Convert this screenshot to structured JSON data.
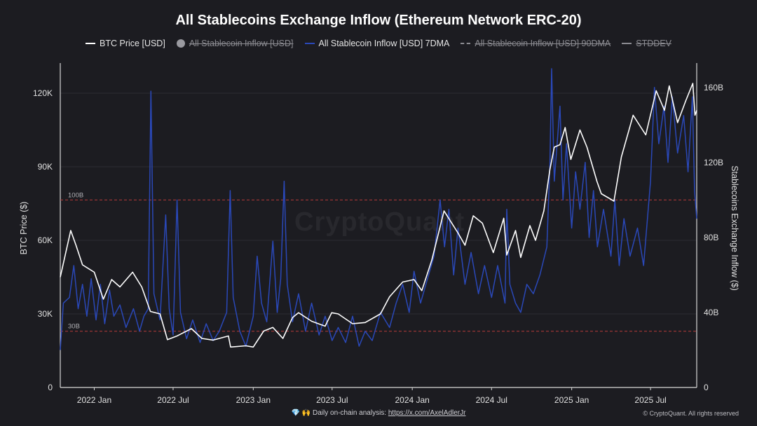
{
  "chart_data": {
    "type": "line",
    "title": "All Stablecoins Exchange Inflow (Ethereum Network ERC-20)",
    "left_axis_label": "BTC Price ($)",
    "right_axis_label": "Stablecoins Exchange Inflow ($)",
    "left_ylim": [
      0,
      130000
    ],
    "right_ylim": [
      0,
      170
    ],
    "left_ticks": [
      {
        "v": 0,
        "label": "0"
      },
      {
        "v": 30000,
        "label": "30K"
      },
      {
        "v": 60000,
        "label": "60K"
      },
      {
        "v": 90000,
        "label": "90K"
      },
      {
        "v": 120000,
        "label": "120K"
      }
    ],
    "right_ticks": [
      {
        "v": 0,
        "label": "0"
      },
      {
        "v": 40,
        "label": "40B"
      },
      {
        "v": 80,
        "label": "80B"
      },
      {
        "v": 120,
        "label": "120B"
      },
      {
        "v": 160,
        "label": "160B"
      }
    ],
    "x_range": [
      "2021-10-15",
      "2025-10-15"
    ],
    "x_ticks": [
      {
        "date": "2022-01-01",
        "label": "2022 Jan"
      },
      {
        "date": "2022-07-01",
        "label": "2022 Jul"
      },
      {
        "date": "2023-01-01",
        "label": "2023 Jan"
      },
      {
        "date": "2023-07-01",
        "label": "2023 Jul"
      },
      {
        "date": "2024-01-01",
        "label": "2024 Jan"
      },
      {
        "date": "2024-07-01",
        "label": "2024 Jul"
      },
      {
        "date": "2025-01-01",
        "label": "2025 Jan"
      },
      {
        "date": "2025-07-01",
        "label": "2025 Jul"
      }
    ],
    "reference_lines": [
      {
        "value": 100,
        "axis": "right",
        "label": "100B",
        "color": "#b83a3a"
      },
      {
        "value": 30,
        "axis": "right",
        "label": "30B",
        "color": "#b83a3a"
      }
    ],
    "legend": [
      {
        "name": "BTC Price [USD]",
        "color": "#ffffff",
        "style": "line",
        "visible": true
      },
      {
        "name": "All Stablecoin Inflow [USD]",
        "color": "#9a9aa0",
        "style": "dot",
        "visible": false
      },
      {
        "name": "All Stablecoin Inflow [USD] 7DMA",
        "color": "#2a48b8",
        "style": "line",
        "visible": true
      },
      {
        "name": "All Stablecoin Inflow [USD] 90DMA",
        "color": "#8c8c92",
        "style": "dashed",
        "visible": false
      },
      {
        "name": "STDDEV",
        "color": "#8c8c92",
        "style": "line",
        "visible": false
      }
    ],
    "series": [
      {
        "name": "BTC Price [USD]",
        "axis": "left",
        "color": "#ffffff",
        "points": [
          [
            "2021-10-15",
            45000
          ],
          [
            "2021-11-08",
            64000
          ],
          [
            "2021-11-20",
            58000
          ],
          [
            "2021-12-05",
            50000
          ],
          [
            "2022-01-01",
            47000
          ],
          [
            "2022-01-22",
            36000
          ],
          [
            "2022-02-10",
            44000
          ],
          [
            "2022-03-01",
            41000
          ],
          [
            "2022-03-30",
            47000
          ],
          [
            "2022-04-20",
            41000
          ],
          [
            "2022-05-10",
            31000
          ],
          [
            "2022-06-01",
            30000
          ],
          [
            "2022-06-18",
            19500
          ],
          [
            "2022-07-10",
            21000
          ],
          [
            "2022-08-12",
            24000
          ],
          [
            "2022-09-05",
            20000
          ],
          [
            "2022-10-01",
            19300
          ],
          [
            "2022-11-05",
            21000
          ],
          [
            "2022-11-10",
            16500
          ],
          [
            "2022-12-15",
            17000
          ],
          [
            "2023-01-01",
            16500
          ],
          [
            "2023-01-25",
            23000
          ],
          [
            "2023-02-15",
            24500
          ],
          [
            "2023-03-10",
            20000
          ],
          [
            "2023-04-01",
            28500
          ],
          [
            "2023-04-15",
            30500
          ],
          [
            "2023-05-15",
            27000
          ],
          [
            "2023-06-15",
            25000
          ],
          [
            "2023-06-30",
            30500
          ],
          [
            "2023-07-15",
            30000
          ],
          [
            "2023-08-17",
            26000
          ],
          [
            "2023-09-15",
            26500
          ],
          [
            "2023-10-20",
            30000
          ],
          [
            "2023-11-10",
            37000
          ],
          [
            "2023-12-10",
            43000
          ],
          [
            "2024-01-05",
            44000
          ],
          [
            "2024-01-23",
            39500
          ],
          [
            "2024-02-15",
            52000
          ],
          [
            "2024-03-14",
            72000
          ],
          [
            "2024-04-15",
            63000
          ],
          [
            "2024-05-01",
            58000
          ],
          [
            "2024-05-20",
            70000
          ],
          [
            "2024-06-10",
            67000
          ],
          [
            "2024-07-05",
            55000
          ],
          [
            "2024-07-29",
            69000
          ],
          [
            "2024-08-05",
            54000
          ],
          [
            "2024-08-25",
            64000
          ],
          [
            "2024-09-06",
            53000
          ],
          [
            "2024-09-27",
            66000
          ],
          [
            "2024-10-10",
            60000
          ],
          [
            "2024-10-29",
            72000
          ],
          [
            "2024-11-12",
            89000
          ],
          [
            "2024-11-22",
            98000
          ],
          [
            "2024-12-05",
            99000
          ],
          [
            "2024-12-17",
            106000
          ],
          [
            "2024-12-30",
            93000
          ],
          [
            "2025-01-20",
            105000
          ],
          [
            "2025-02-05",
            98000
          ],
          [
            "2025-02-28",
            84000
          ],
          [
            "2025-03-10",
            79000
          ],
          [
            "2025-04-08",
            76000
          ],
          [
            "2025-04-25",
            94000
          ],
          [
            "2025-05-22",
            111000
          ],
          [
            "2025-06-20",
            103000
          ],
          [
            "2025-07-14",
            121000
          ],
          [
            "2025-08-02",
            113000
          ],
          [
            "2025-08-13",
            123000
          ],
          [
            "2025-09-01",
            108000
          ],
          [
            "2025-09-20",
            117000
          ],
          [
            "2025-10-06",
            124000
          ],
          [
            "2025-10-11",
            111000
          ],
          [
            "2025-10-15",
            113000
          ]
        ]
      },
      {
        "name": "All Stablecoin Inflow [USD] 7DMA",
        "axis": "right",
        "color": "#2a48b8",
        "points": [
          [
            "2021-10-15",
            20
          ],
          [
            "2021-10-22",
            45
          ],
          [
            "2021-11-05",
            48
          ],
          [
            "2021-11-15",
            65
          ],
          [
            "2021-11-25",
            42
          ],
          [
            "2021-12-05",
            55
          ],
          [
            "2021-12-15",
            38
          ],
          [
            "2021-12-25",
            58
          ],
          [
            "2022-01-05",
            36
          ],
          [
            "2022-01-15",
            55
          ],
          [
            "2022-01-25",
            34
          ],
          [
            "2022-02-05",
            52
          ],
          [
            "2022-02-15",
            38
          ],
          [
            "2022-03-01",
            44
          ],
          [
            "2022-03-15",
            32
          ],
          [
            "2022-04-01",
            42
          ],
          [
            "2022-04-15",
            30
          ],
          [
            "2022-04-25",
            38
          ],
          [
            "2022-05-05",
            42
          ],
          [
            "2022-05-11",
            158
          ],
          [
            "2022-05-18",
            50
          ],
          [
            "2022-06-01",
            36
          ],
          [
            "2022-06-14",
            92
          ],
          [
            "2022-06-22",
            42
          ],
          [
            "2022-07-01",
            28
          ],
          [
            "2022-07-10",
            100
          ],
          [
            "2022-07-18",
            40
          ],
          [
            "2022-08-01",
            26
          ],
          [
            "2022-08-15",
            36
          ],
          [
            "2022-09-01",
            24
          ],
          [
            "2022-09-15",
            34
          ],
          [
            "2022-10-01",
            25
          ],
          [
            "2022-10-15",
            30
          ],
          [
            "2022-11-01",
            40
          ],
          [
            "2022-11-09",
            105
          ],
          [
            "2022-11-16",
            48
          ],
          [
            "2022-12-01",
            30
          ],
          [
            "2022-12-15",
            22
          ],
          [
            "2023-01-01",
            38
          ],
          [
            "2023-01-10",
            70
          ],
          [
            "2023-01-20",
            45
          ],
          [
            "2023-02-01",
            35
          ],
          [
            "2023-02-15",
            78
          ],
          [
            "2023-02-25",
            40
          ],
          [
            "2023-03-05",
            58
          ],
          [
            "2023-03-13",
            110
          ],
          [
            "2023-03-20",
            55
          ],
          [
            "2023-04-01",
            35
          ],
          [
            "2023-04-15",
            50
          ],
          [
            "2023-05-01",
            30
          ],
          [
            "2023-05-15",
            45
          ],
          [
            "2023-06-01",
            28
          ],
          [
            "2023-06-15",
            38
          ],
          [
            "2023-07-01",
            25
          ],
          [
            "2023-07-15",
            32
          ],
          [
            "2023-08-01",
            24
          ],
          [
            "2023-08-17",
            38
          ],
          [
            "2023-09-01",
            22
          ],
          [
            "2023-09-15",
            30
          ],
          [
            "2023-10-01",
            25
          ],
          [
            "2023-10-20",
            40
          ],
          [
            "2023-11-10",
            32
          ],
          [
            "2023-11-25",
            45
          ],
          [
            "2023-12-10",
            55
          ],
          [
            "2023-12-25",
            40
          ],
          [
            "2024-01-05",
            62
          ],
          [
            "2024-01-20",
            45
          ],
          [
            "2024-02-05",
            58
          ],
          [
            "2024-02-20",
            70
          ],
          [
            "2024-03-05",
            100
          ],
          [
            "2024-03-15",
            75
          ],
          [
            "2024-03-25",
            95
          ],
          [
            "2024-04-05",
            60
          ],
          [
            "2024-04-15",
            85
          ],
          [
            "2024-05-01",
            55
          ],
          [
            "2024-05-15",
            72
          ],
          [
            "2024-06-01",
            50
          ],
          [
            "2024-06-15",
            65
          ],
          [
            "2024-07-01",
            48
          ],
          [
            "2024-07-15",
            65
          ],
          [
            "2024-08-01",
            45
          ],
          [
            "2024-08-05",
            95
          ],
          [
            "2024-08-12",
            55
          ],
          [
            "2024-08-25",
            45
          ],
          [
            "2024-09-06",
            40
          ],
          [
            "2024-09-20",
            55
          ],
          [
            "2024-10-05",
            50
          ],
          [
            "2024-10-20",
            60
          ],
          [
            "2024-11-05",
            75
          ],
          [
            "2024-11-12",
            120
          ],
          [
            "2024-11-16",
            170
          ],
          [
            "2024-11-22",
            110
          ],
          [
            "2024-12-05",
            150
          ],
          [
            "2024-12-12",
            100
          ],
          [
            "2024-12-20",
            130
          ],
          [
            "2025-01-01",
            85
          ],
          [
            "2025-01-10",
            115
          ],
          [
            "2025-01-20",
            95
          ],
          [
            "2025-02-01",
            120
          ],
          [
            "2025-02-10",
            80
          ],
          [
            "2025-02-20",
            105
          ],
          [
            "2025-03-01",
            75
          ],
          [
            "2025-03-15",
            95
          ],
          [
            "2025-04-01",
            70
          ],
          [
            "2025-04-10",
            100
          ],
          [
            "2025-04-20",
            65
          ],
          [
            "2025-05-01",
            90
          ],
          [
            "2025-05-15",
            70
          ],
          [
            "2025-06-01",
            85
          ],
          [
            "2025-06-15",
            65
          ],
          [
            "2025-07-01",
            110
          ],
          [
            "2025-07-10",
            160
          ],
          [
            "2025-07-20",
            130
          ],
          [
            "2025-08-01",
            150
          ],
          [
            "2025-08-10",
            120
          ],
          [
            "2025-08-20",
            155
          ],
          [
            "2025-09-01",
            125
          ],
          [
            "2025-09-15",
            145
          ],
          [
            "2025-09-25",
            115
          ],
          [
            "2025-10-05",
            155
          ],
          [
            "2025-10-10",
            105
          ],
          [
            "2025-10-15",
            90
          ]
        ]
      }
    ]
  },
  "watermark": "CryptoQuant",
  "footer": {
    "emoji": "💎 🙌",
    "text": "Daily on-chain analysis:",
    "link": "https://x.com/AxelAdlerJr",
    "copyright": "© CryptoQuant. All rights reserved"
  }
}
